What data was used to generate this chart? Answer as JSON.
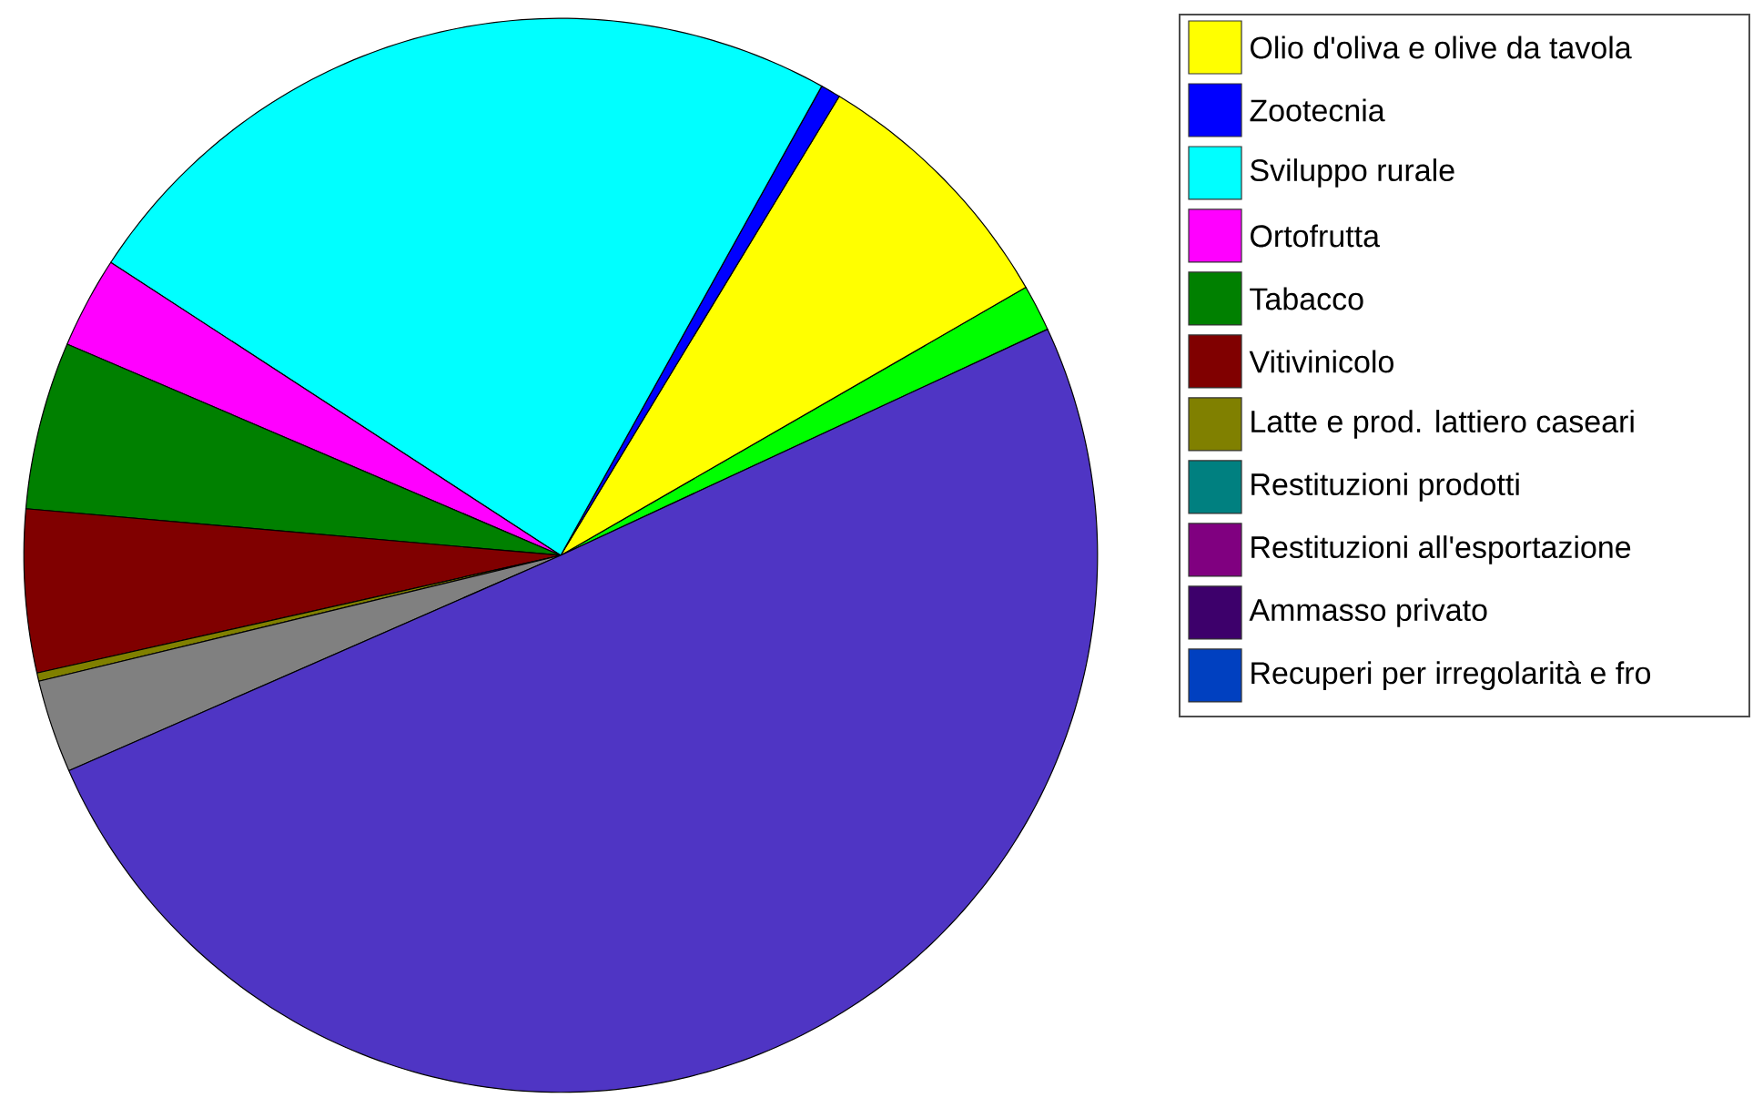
{
  "chart_data": {
    "type": "pie",
    "legend": "top right",
    "categories": [
      null,
      "Olio d'oliva e olive da tavola",
      "Zootecnia",
      "Sviluppo rurale",
      "Ortofrutta",
      "Tabacco",
      "Vitivinicolo",
      "Latte e prod. lattiero caseari",
      "Restituzioni prodotti",
      "Restituzioni all'esportazione",
      "Ammasso privato",
      "Recuperi per irregolarità e fro",
      null,
      null
    ],
    "values": [
      1.4,
      8.0,
      0.6,
      23.9,
      2.75,
      5.05,
      4.9,
      0.25,
      0,
      0,
      0,
      0,
      2.8,
      50.35
    ],
    "colors": [
      "#00ff00",
      "#ffff00",
      "#0000ff",
      "#00ffff",
      "#ff00ff",
      "#008000",
      "#800000",
      "#808000",
      "#008080",
      "#800080",
      "#3d006b",
      "#0040c0",
      "#808080",
      "#4f35c4"
    ]
  }
}
